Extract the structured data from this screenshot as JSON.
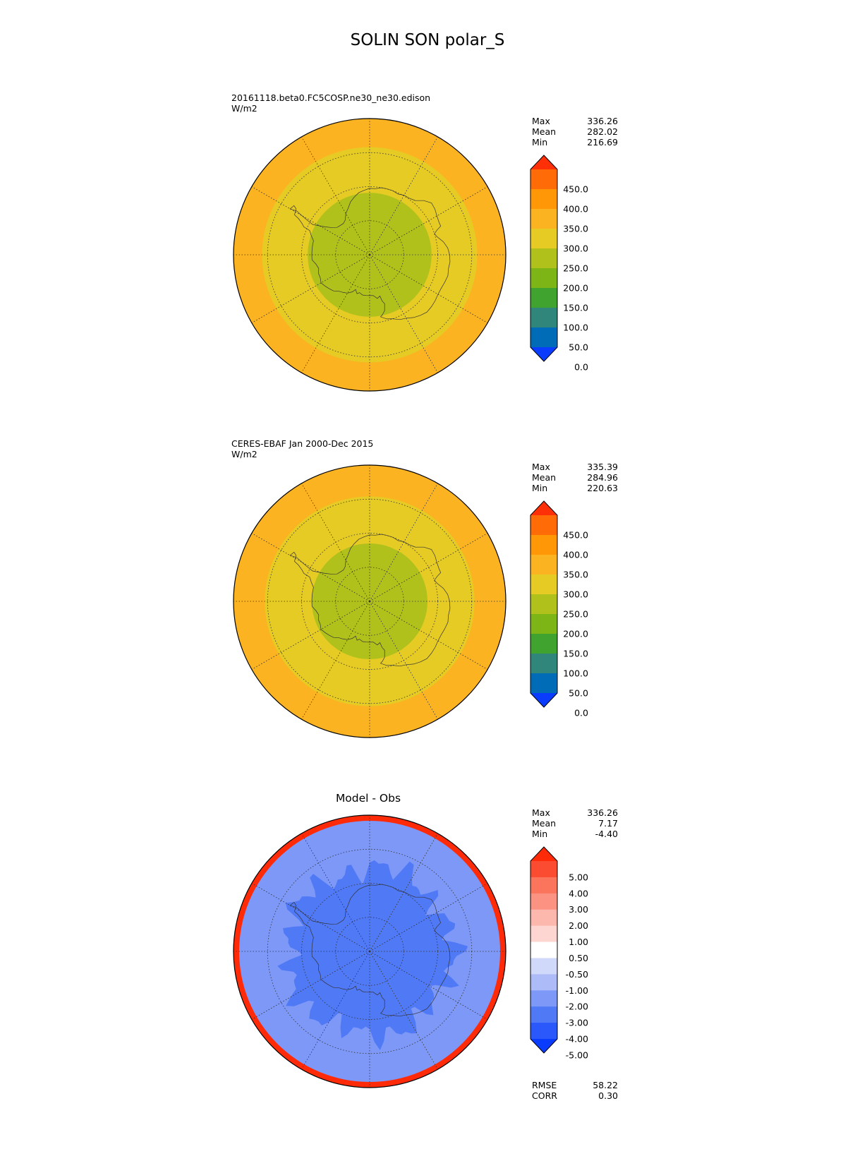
{
  "title": "SOLIN SON polar_S",
  "colors": {
    "main_levels": [
      "#0a3cff",
      "#006bb6",
      "#31867c",
      "#41a32f",
      "#7db416",
      "#b1c11b",
      "#e6cb25",
      "#fcb321",
      "#ff9706",
      "#ff6c07",
      "#ff3008"
    ],
    "diff_levels": [
      "#0a3cff",
      "#2a58fa",
      "#5079f6",
      "#7d98f7",
      "#adbcf8",
      "#d1d9fa",
      "#ffffff",
      "#fdd6d1",
      "#fdb8ad",
      "#fc9282",
      "#fb745c",
      "#fb4b30",
      "#ff2a08"
    ],
    "coast": "#333333",
    "grid": "#333333"
  },
  "panels": [
    {
      "id": "test",
      "label_lines": [
        "20161118.beta0.FC5COSP.ne30_ne30.edison",
        "W/m2"
      ],
      "subtitle": "",
      "stats": [
        {
          "label": "Max",
          "value": "336.26"
        },
        {
          "label": "Mean",
          "value": "282.02"
        },
        {
          "label": "Min",
          "value": "216.69"
        }
      ],
      "colorbar_ticks": [
        "450.0",
        "400.0",
        "350.0",
        "300.0",
        "250.0",
        "200.0",
        "150.0",
        "100.0",
        "50.0",
        "0.0"
      ],
      "rings_lat_bands": [
        {
          "band": "<-76",
          "level": 5
        },
        {
          "band": "-76..-59",
          "level": 6
        },
        {
          "band": "-59..-50",
          "level": 7
        }
      ]
    },
    {
      "id": "ref",
      "label_lines": [
        "CERES-EBAF Jan 2000-Dec 2015",
        "W/m2"
      ],
      "subtitle": "",
      "stats": [
        {
          "label": "Max",
          "value": "335.39"
        },
        {
          "label": "Mean",
          "value": "284.96"
        },
        {
          "label": "Min",
          "value": "220.63"
        }
      ],
      "colorbar_ticks": [
        "450.0",
        "400.0",
        "350.0",
        "300.0",
        "250.0",
        "200.0",
        "150.0",
        "100.0",
        "50.0",
        "0.0"
      ],
      "rings_lat_bands": [
        {
          "band": "<-76",
          "level": 5
        },
        {
          "band": "-76..-59",
          "level": 6
        },
        {
          "band": "-59..-50",
          "level": 7
        }
      ]
    },
    {
      "id": "diff",
      "label_lines": [],
      "subtitle": "Model - Obs",
      "stats": [
        {
          "label": "Max",
          "value": "336.26"
        },
        {
          "label": "Mean",
          "value": "7.17"
        },
        {
          "label": "Min",
          "value": "-4.40"
        }
      ],
      "colorbar_ticks": [
        "5.00",
        "4.00",
        "3.00",
        "2.00",
        "1.00",
        "0.50",
        "-0.50",
        "-1.00",
        "-2.00",
        "-3.00",
        "-4.00",
        "-5.00"
      ],
      "bottom_stats": [
        {
          "label": "RMSE",
          "value": "58.22"
        },
        {
          "label": "CORR",
          "value": "0.30"
        }
      ]
    }
  ],
  "chart_data": [
    {
      "type": "heatmap",
      "projection": "south-polar-stereographic",
      "title": "20161118.beta0.FC5COSP.ne30_ne30.edison",
      "units": "W/m2",
      "lat_range": [
        -90,
        -50
      ],
      "contour_levels": [
        0,
        50,
        100,
        150,
        200,
        250,
        300,
        350,
        400,
        450
      ],
      "max": 336.26,
      "mean": 282.02,
      "min": 216.69
    },
    {
      "type": "heatmap",
      "projection": "south-polar-stereographic",
      "title": "CERES-EBAF Jan 2000-Dec 2015",
      "units": "W/m2",
      "lat_range": [
        -90,
        -50
      ],
      "contour_levels": [
        0,
        50,
        100,
        150,
        200,
        250,
        300,
        350,
        400,
        450
      ],
      "max": 335.39,
      "mean": 284.96,
      "min": 220.63
    },
    {
      "type": "heatmap",
      "projection": "south-polar-stereographic",
      "title": "Model - Obs",
      "lat_range": [
        -90,
        -50
      ],
      "contour_levels": [
        -5,
        -4,
        -3,
        -2,
        -1,
        -0.5,
        0.5,
        1,
        2,
        3,
        4,
        5
      ],
      "max": 336.26,
      "mean": 7.17,
      "min": -4.4,
      "rmse": 58.22,
      "corr": 0.3
    }
  ]
}
